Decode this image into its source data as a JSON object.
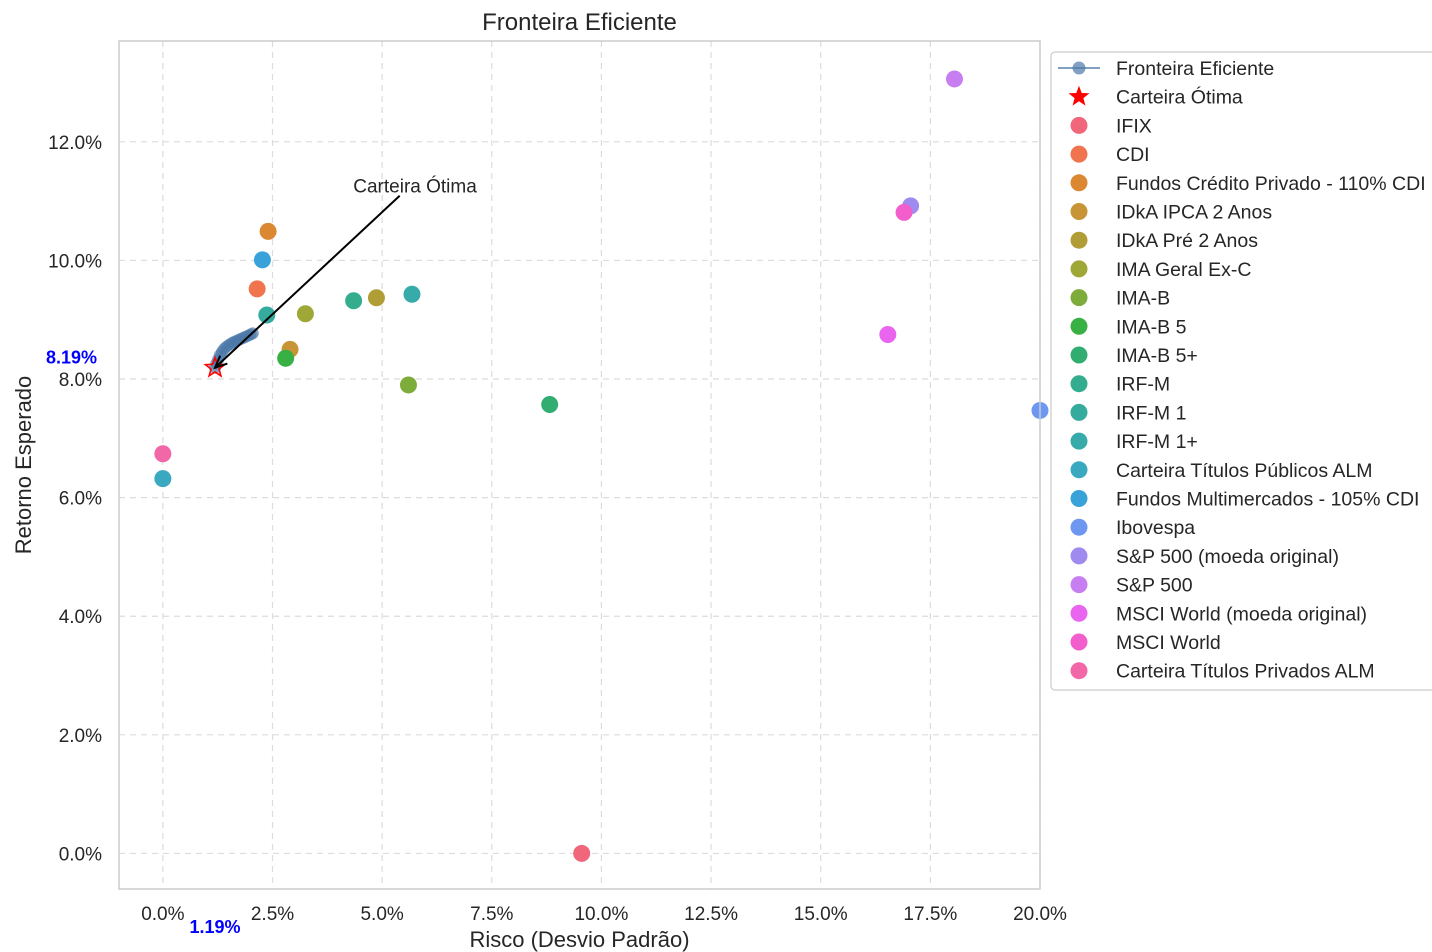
{
  "chart_data": {
    "type": "scatter",
    "title": "Fronteira Eficiente",
    "xlabel": "Risco (Desvio Padrão)",
    "ylabel": "Retorno Esperado",
    "xlim": [
      -0.01,
      0.2
    ],
    "ylim": [
      -0.006,
      0.137
    ],
    "xticks": [
      0,
      0.025,
      0.05,
      0.075,
      0.1,
      0.125,
      0.15,
      0.175,
      0.2
    ],
    "xtick_labels": [
      "0.0%",
      "2.5%",
      "5.0%",
      "7.5%",
      "10.0%",
      "12.5%",
      "15.0%",
      "17.5%",
      "20.0%"
    ],
    "yticks": [
      0,
      0.02,
      0.04,
      0.06,
      0.08,
      0.1,
      0.12
    ],
    "ytick_labels": [
      "0.0%",
      "2.0%",
      "4.0%",
      "6.0%",
      "8.0%",
      "10.0%",
      "12.0%"
    ],
    "grid": true,
    "legend_position": "outside-right",
    "frontier": {
      "name": "Fronteira Eficiente",
      "color": "#4c78a8",
      "x": [
        0.0119,
        0.0122,
        0.0126,
        0.013,
        0.0135,
        0.014,
        0.0146,
        0.0152,
        0.0158,
        0.0164,
        0.017,
        0.0176,
        0.0182,
        0.0188,
        0.0194,
        0.02,
        0.0205
      ],
      "y": [
        0.0819,
        0.0826,
        0.0833,
        0.084,
        0.0846,
        0.0851,
        0.0855,
        0.0858,
        0.0861,
        0.0863,
        0.0865,
        0.0867,
        0.0869,
        0.0871,
        0.0873,
        0.0875,
        0.0877
      ]
    },
    "optimal": {
      "name": "Carteira Ótima",
      "x": 0.0119,
      "y": 0.0819,
      "color": "#ff0000",
      "x_label": "1.19%",
      "y_label": "8.19%",
      "label_color": "#0000ff"
    },
    "annotation": {
      "text": "Carteira Ótima",
      "text_x": 0.0575,
      "text_y": 0.1125,
      "arrow_from_x": 0.054,
      "arrow_from_y": 0.1109,
      "arrow_to_x": 0.0119,
      "arrow_to_y": 0.0819
    },
    "series": [
      {
        "name": "IFIX",
        "color": "#f0677c",
        "x": 0.0955,
        "y": 0.0
      },
      {
        "name": "CDI",
        "color": "#f0754f",
        "x": 0.0215,
        "y": 0.0952
      },
      {
        "name": "Fundos Crédito Privado - 110% CDI",
        "color": "#dc8732",
        "x": 0.024,
        "y": 0.1049
      },
      {
        "name": "IDkA IPCA 2 Anos",
        "color": "#c79535",
        "x": 0.029,
        "y": 0.085
      },
      {
        "name": "IDkA Pré 2 Anos",
        "color": "#b19d36",
        "x": 0.0487,
        "y": 0.0937
      },
      {
        "name": "IMA Geral Ex-C",
        "color": "#9fa736",
        "x": 0.0325,
        "y": 0.091
      },
      {
        "name": "IMA-B",
        "color": "#7eac3a",
        "x": 0.056,
        "y": 0.079
      },
      {
        "name": "IMA-B 5",
        "color": "#38b044",
        "x": 0.028,
        "y": 0.0835
      },
      {
        "name": "IMA-B 5+",
        "color": "#32ad72",
        "x": 0.0882,
        "y": 0.0757
      },
      {
        "name": "IRF-M",
        "color": "#33ad8e",
        "x": 0.0435,
        "y": 0.0932
      },
      {
        "name": "IRF-M 1",
        "color": "#35ab9d",
        "x": 0.0237,
        "y": 0.0908
      },
      {
        "name": "IRF-M 1+",
        "color": "#37aaaa",
        "x": 0.0568,
        "y": 0.0943
      },
      {
        "name": "Carteira Títulos Públicos ALM",
        "color": "#3aa8bf",
        "x": 0.0,
        "y": 0.0632
      },
      {
        "name": "Fundos Multimercados - 105% CDI",
        "color": "#38a2d9",
        "x": 0.0227,
        "y": 0.1001
      },
      {
        "name": "Ibovespa",
        "color": "#6e97f2",
        "x": 0.2,
        "y": 0.0747
      },
      {
        "name": "S&P 500 (moeda original)",
        "color": "#9f8bf0",
        "x": 0.1705,
        "y": 0.1092
      },
      {
        "name": "S&P 500",
        "color": "#c77ef0",
        "x": 0.1805,
        "y": 0.1306
      },
      {
        "name": "MSCI World (moeda original)",
        "color": "#e965ef",
        "x": 0.1653,
        "y": 0.0875
      },
      {
        "name": "MSCI World",
        "color": "#f25ecb",
        "x": 0.169,
        "y": 0.1081
      },
      {
        "name": "Carteira Títulos Privados ALM",
        "color": "#f267a8",
        "x": 0.0,
        "y": 0.0674
      }
    ]
  }
}
